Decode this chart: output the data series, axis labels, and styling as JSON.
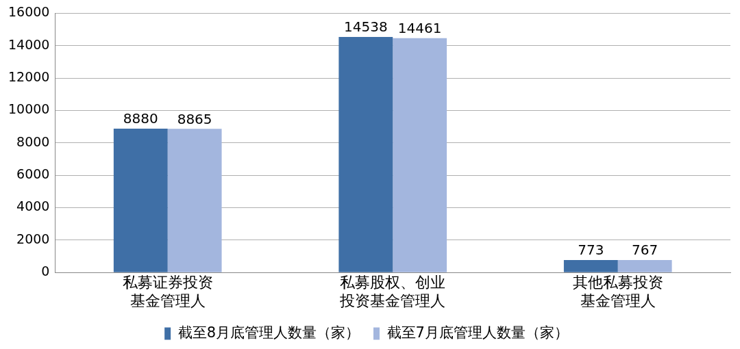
{
  "chart_data": {
    "type": "bar",
    "categories": [
      "私募证券投资基金管理人",
      "私募股权、创业投资基金管理人",
      "其他私募投资基金管理人"
    ],
    "series": [
      {
        "name": "截至8月底管理人数量（家）",
        "color": "#3f6fa6",
        "values": [
          8880,
          14538,
          773
        ]
      },
      {
        "name": "截至7月底管理人数量（家）",
        "color": "#a3b6de",
        "values": [
          8865,
          14461,
          767
        ]
      }
    ],
    "ylim": [
      0,
      16000
    ],
    "yticks": [
      0,
      2000,
      4000,
      6000,
      8000,
      10000,
      12000,
      14000,
      16000
    ],
    "grid": "y",
    "legend": "bottom",
    "data_labels": true
  }
}
